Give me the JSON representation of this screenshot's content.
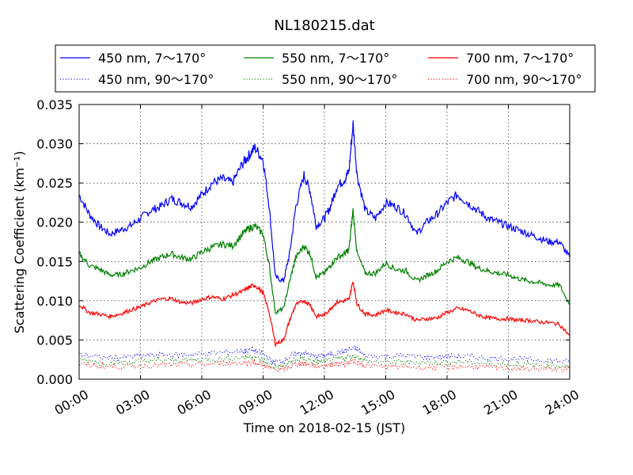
{
  "chart_data": {
    "type": "line",
    "title": "NL180215.dat",
    "xlabel": "Time on 2018-02-15 (JST)",
    "ylabel": "Scattering Coefficient (km⁻¹)",
    "xlim": [
      0,
      24
    ],
    "ylim": [
      0.0,
      0.035
    ],
    "x_unit": "hours",
    "x_tick_labels": [
      "00:00",
      "03:00",
      "06:00",
      "09:00",
      "12:00",
      "15:00",
      "18:00",
      "21:00",
      "24:00"
    ],
    "y_tick_labels": [
      "0.000",
      "0.005",
      "0.010",
      "0.015",
      "0.020",
      "0.025",
      "0.030",
      "0.035"
    ],
    "grid": true,
    "legend_position": "top",
    "series": [
      {
        "name": "450 nm, 7～170°",
        "color": "#0000ff",
        "style": "solid",
        "x": [
          0,
          0.5,
          1,
          1.5,
          2,
          2.5,
          3,
          3.5,
          4,
          4.5,
          5,
          5.5,
          6,
          6.5,
          7,
          7.5,
          8,
          8.3,
          8.6,
          9,
          9.3,
          9.6,
          10,
          10.3,
          10.6,
          11,
          11.3,
          11.6,
          12,
          12.3,
          12.6,
          13,
          13.2,
          13.4,
          13.6,
          14,
          14.5,
          15,
          15.5,
          16,
          16.5,
          17,
          17.5,
          18,
          18.5,
          19,
          19.5,
          20,
          20.5,
          21,
          21.5,
          22,
          22.5,
          23,
          23.5,
          24
        ],
        "y": [
          0.0235,
          0.021,
          0.0195,
          0.0185,
          0.019,
          0.0195,
          0.0205,
          0.0215,
          0.022,
          0.023,
          0.0225,
          0.022,
          0.0235,
          0.025,
          0.0255,
          0.025,
          0.0275,
          0.0285,
          0.0295,
          0.028,
          0.022,
          0.013,
          0.0125,
          0.016,
          0.022,
          0.026,
          0.024,
          0.0195,
          0.0205,
          0.022,
          0.0245,
          0.0255,
          0.0265,
          0.0325,
          0.026,
          0.0215,
          0.0205,
          0.0225,
          0.022,
          0.021,
          0.0185,
          0.02,
          0.021,
          0.0225,
          0.0235,
          0.0225,
          0.0215,
          0.0205,
          0.02,
          0.0195,
          0.019,
          0.0185,
          0.018,
          0.0175,
          0.0175,
          0.0155
        ]
      },
      {
        "name": "550 nm, 7～170°",
        "color": "#008000",
        "style": "solid",
        "x": [
          0,
          0.5,
          1,
          1.5,
          2,
          2.5,
          3,
          3.5,
          4,
          4.5,
          5,
          5.5,
          6,
          6.5,
          7,
          7.5,
          8,
          8.3,
          8.6,
          9,
          9.3,
          9.6,
          10,
          10.3,
          10.6,
          11,
          11.3,
          11.6,
          12,
          12.3,
          12.6,
          13,
          13.2,
          13.4,
          13.6,
          14,
          14.5,
          15,
          15.5,
          16,
          16.5,
          17,
          17.5,
          18,
          18.5,
          19,
          19.5,
          20,
          20.5,
          21,
          21.5,
          22,
          22.5,
          23,
          23.5,
          24
        ],
        "y": [
          0.016,
          0.0145,
          0.014,
          0.0133,
          0.0133,
          0.0138,
          0.0142,
          0.015,
          0.0155,
          0.016,
          0.0155,
          0.0153,
          0.0162,
          0.0168,
          0.0172,
          0.017,
          0.0185,
          0.0192,
          0.0195,
          0.0185,
          0.0145,
          0.0085,
          0.009,
          0.0125,
          0.0155,
          0.017,
          0.016,
          0.013,
          0.0135,
          0.0145,
          0.0155,
          0.016,
          0.0165,
          0.0215,
          0.016,
          0.0135,
          0.0135,
          0.0148,
          0.014,
          0.0138,
          0.0125,
          0.0132,
          0.0138,
          0.015,
          0.0155,
          0.015,
          0.0142,
          0.0138,
          0.0135,
          0.0133,
          0.0128,
          0.0125,
          0.0123,
          0.012,
          0.012,
          0.0095
        ]
      },
      {
        "name": "700 nm, 7～170°",
        "color": "#ff0000",
        "style": "solid",
        "x": [
          0,
          0.5,
          1,
          1.5,
          2,
          2.5,
          3,
          3.5,
          4,
          4.5,
          5,
          5.5,
          6,
          6.5,
          7,
          7.5,
          8,
          8.3,
          8.6,
          9,
          9.3,
          9.6,
          10,
          10.3,
          10.6,
          11,
          11.3,
          11.6,
          12,
          12.3,
          12.6,
          13,
          13.2,
          13.4,
          13.6,
          14,
          14.5,
          15,
          15.5,
          16,
          16.5,
          17,
          17.5,
          18,
          18.5,
          19,
          19.5,
          20,
          20.5,
          21,
          21.5,
          22,
          22.5,
          23,
          23.5,
          24
        ],
        "y": [
          0.0095,
          0.0085,
          0.0083,
          0.008,
          0.0083,
          0.0088,
          0.0092,
          0.0098,
          0.0102,
          0.0103,
          0.0098,
          0.0097,
          0.0102,
          0.0105,
          0.0102,
          0.0107,
          0.0112,
          0.0117,
          0.012,
          0.011,
          0.0085,
          0.0045,
          0.005,
          0.0075,
          0.0095,
          0.01,
          0.0095,
          0.008,
          0.0082,
          0.009,
          0.0098,
          0.01,
          0.0102,
          0.0125,
          0.0095,
          0.0083,
          0.0082,
          0.0088,
          0.0085,
          0.0083,
          0.0075,
          0.0077,
          0.0078,
          0.0085,
          0.009,
          0.0088,
          0.0082,
          0.0078,
          0.0077,
          0.0077,
          0.0075,
          0.0075,
          0.0073,
          0.0072,
          0.007,
          0.0055
        ]
      },
      {
        "name": "450 nm, 90～170°",
        "color": "#0000ff",
        "style": "dotted",
        "x": [
          0,
          1,
          2,
          3,
          4,
          5,
          6,
          7,
          8,
          8.5,
          9,
          9.5,
          10,
          10.5,
          11,
          11.5,
          12,
          12.5,
          13,
          13.5,
          14,
          15,
          16,
          17,
          18,
          19,
          20,
          21,
          22,
          23,
          24
        ],
        "y": [
          0.0032,
          0.0028,
          0.0027,
          0.003,
          0.0031,
          0.0031,
          0.0032,
          0.0034,
          0.0036,
          0.0037,
          0.0032,
          0.0022,
          0.0023,
          0.0032,
          0.0034,
          0.0029,
          0.003,
          0.0033,
          0.0036,
          0.004,
          0.003,
          0.0029,
          0.003,
          0.0028,
          0.0029,
          0.0029,
          0.0027,
          0.0026,
          0.0025,
          0.0024,
          0.0022
        ]
      },
      {
        "name": "550 nm, 90～170°",
        "color": "#008000",
        "style": "dotted",
        "x": [
          0,
          1,
          2,
          3,
          4,
          5,
          6,
          7,
          8,
          8.5,
          9,
          9.5,
          10,
          10.5,
          11,
          11.5,
          12,
          12.5,
          13,
          13.5,
          14,
          15,
          16,
          17,
          18,
          19,
          20,
          21,
          22,
          23,
          24
        ],
        "y": [
          0.0025,
          0.0022,
          0.0021,
          0.0023,
          0.0024,
          0.0024,
          0.0025,
          0.0026,
          0.0028,
          0.0029,
          0.0024,
          0.0016,
          0.0017,
          0.0024,
          0.0026,
          0.0022,
          0.0023,
          0.0025,
          0.0027,
          0.003,
          0.0023,
          0.0022,
          0.0022,
          0.0021,
          0.0022,
          0.0022,
          0.002,
          0.0019,
          0.0018,
          0.0018,
          0.0016
        ]
      },
      {
        "name": "700 nm, 90～170°",
        "color": "#ff0000",
        "style": "dotted",
        "x": [
          0,
          1,
          2,
          3,
          4,
          5,
          6,
          7,
          8,
          8.5,
          9,
          9.5,
          10,
          10.5,
          11,
          11.5,
          12,
          12.5,
          13,
          13.5,
          14,
          15,
          16,
          17,
          18,
          19,
          20,
          21,
          22,
          23,
          24
        ],
        "y": [
          0.0019,
          0.0017,
          0.0016,
          0.0017,
          0.0018,
          0.0018,
          0.0019,
          0.002,
          0.0021,
          0.0022,
          0.0018,
          0.0012,
          0.0013,
          0.0018,
          0.002,
          0.0017,
          0.0017,
          0.0019,
          0.002,
          0.0023,
          0.0017,
          0.0016,
          0.0016,
          0.0015,
          0.0016,
          0.0016,
          0.0015,
          0.0014,
          0.0013,
          0.0013,
          0.0012
        ]
      }
    ]
  }
}
